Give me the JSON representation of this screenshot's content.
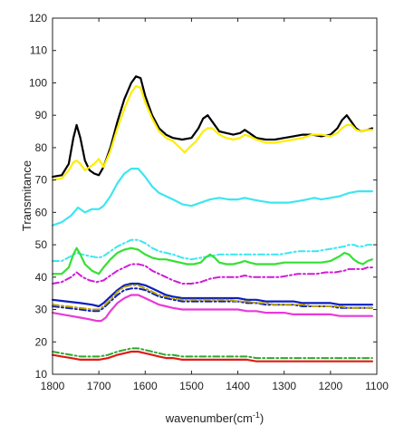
{
  "chart_data": {
    "type": "line",
    "xlabel": "wavenumber(cm",
    "xlabel_superscript": "-1",
    "xlabel_suffix": ")",
    "ylabel": "Transmitance",
    "xlim": [
      1800,
      1100
    ],
    "ylim": [
      10,
      120
    ],
    "x_reversed": true,
    "grid": false,
    "xticks": [
      "1800",
      "1700",
      "1600",
      "1500",
      "1400",
      "1300",
      "1200",
      "1100"
    ],
    "yticks": [
      "10",
      "20",
      "30",
      "40",
      "50",
      "60",
      "70",
      "80",
      "90",
      "100",
      "110",
      "120"
    ],
    "series": [
      {
        "color": "#000000",
        "dash": "solid",
        "width": 2.2,
        "x": [
          1800,
          1780,
          1765,
          1755,
          1748,
          1740,
          1730,
          1720,
          1710,
          1700,
          1690,
          1675,
          1660,
          1645,
          1630,
          1620,
          1610,
          1600,
          1585,
          1570,
          1555,
          1540,
          1520,
          1500,
          1485,
          1475,
          1465,
          1455,
          1440,
          1425,
          1410,
          1395,
          1385,
          1375,
          1360,
          1340,
          1320,
          1300,
          1280,
          1260,
          1240,
          1220,
          1200,
          1185,
          1175,
          1165,
          1155,
          1145,
          1135,
          1120,
          1110
        ],
        "y": [
          71,
          71.5,
          75,
          83,
          87,
          83,
          76,
          73,
          72,
          71.5,
          74,
          80,
          88,
          95,
          100,
          102,
          101.5,
          96,
          90,
          86,
          84,
          83,
          82.5,
          83,
          86,
          89,
          90,
          88,
          85,
          84.5,
          84,
          84.5,
          85.5,
          84.5,
          83,
          82.5,
          82.5,
          83,
          83.5,
          84,
          84,
          83.5,
          84,
          86,
          88.5,
          90,
          88,
          86,
          85,
          85.5,
          86
        ]
      },
      {
        "color": "#ffed00",
        "dash": "solid",
        "width": 2.2,
        "x": [
          1800,
          1780,
          1765,
          1755,
          1748,
          1740,
          1730,
          1720,
          1710,
          1700,
          1690,
          1675,
          1660,
          1645,
          1630,
          1620,
          1610,
          1600,
          1585,
          1570,
          1555,
          1540,
          1525,
          1515,
          1505,
          1490,
          1475,
          1465,
          1455,
          1440,
          1425,
          1410,
          1395,
          1385,
          1375,
          1360,
          1340,
          1320,
          1300,
          1280,
          1260,
          1240,
          1220,
          1200,
          1185,
          1175,
          1165,
          1155,
          1145,
          1135,
          1120,
          1110
        ],
        "y": [
          70,
          70.5,
          73,
          75.5,
          76,
          75,
          73,
          74,
          75,
          76.5,
          74,
          79,
          86,
          92,
          97,
          99,
          98.5,
          94,
          89,
          85,
          83,
          82,
          80,
          78.5,
          80,
          82,
          85,
          86,
          86,
          84,
          83,
          82.5,
          83,
          84,
          83.5,
          82.5,
          81.5,
          81.5,
          82,
          82.5,
          83,
          84,
          84,
          83.5,
          84.5,
          86,
          87,
          87,
          85.5,
          85,
          85.5,
          85.5
        ]
      },
      {
        "color": "#3de6f0",
        "dash": "solid",
        "width": 2.2,
        "x": [
          1800,
          1780,
          1760,
          1745,
          1730,
          1715,
          1700,
          1690,
          1675,
          1660,
          1645,
          1630,
          1615,
          1600,
          1585,
          1570,
          1555,
          1540,
          1520,
          1500,
          1480,
          1460,
          1440,
          1420,
          1400,
          1385,
          1370,
          1350,
          1330,
          1310,
          1290,
          1270,
          1250,
          1235,
          1220,
          1200,
          1180,
          1160,
          1140,
          1120,
          1110
        ],
        "y": [
          56,
          57,
          59,
          61.5,
          60,
          61,
          61,
          62,
          65,
          69,
          72,
          73.5,
          73.5,
          71,
          68,
          66,
          65,
          64,
          62.5,
          62,
          63,
          64,
          64.5,
          64,
          64,
          64.5,
          64,
          63.5,
          63,
          63,
          63,
          63.5,
          64,
          64.5,
          64,
          64.5,
          65,
          66,
          66.5,
          66.5,
          66.5
        ]
      },
      {
        "color": "#3de6f0",
        "dash": "dashdot",
        "width": 2,
        "x": [
          1800,
          1780,
          1760,
          1748,
          1735,
          1720,
          1700,
          1690,
          1675,
          1660,
          1645,
          1630,
          1615,
          1600,
          1585,
          1570,
          1555,
          1540,
          1520,
          1500,
          1480,
          1460,
          1440,
          1420,
          1400,
          1385,
          1370,
          1350,
          1330,
          1310,
          1290,
          1270,
          1250,
          1230,
          1210,
          1190,
          1170,
          1160,
          1150,
          1140,
          1130,
          1120,
          1110
        ],
        "y": [
          45,
          45,
          46.5,
          47.5,
          47,
          46.5,
          46,
          46.5,
          48,
          49.5,
          50.5,
          51.5,
          51.5,
          50.5,
          49,
          48,
          47.5,
          47,
          46,
          45.5,
          46,
          46.5,
          47,
          47,
          47,
          47,
          47,
          47,
          47,
          47,
          47.5,
          48,
          48,
          48,
          48.5,
          49,
          49.5,
          50,
          50,
          49.5,
          49.5,
          50,
          50
        ]
      },
      {
        "color": "#35e035",
        "dash": "solid",
        "width": 2.2,
        "x": [
          1800,
          1780,
          1765,
          1755,
          1748,
          1740,
          1730,
          1715,
          1700,
          1690,
          1675,
          1660,
          1645,
          1630,
          1615,
          1600,
          1585,
          1570,
          1555,
          1540,
          1525,
          1510,
          1495,
          1480,
          1470,
          1460,
          1450,
          1440,
          1425,
          1410,
          1395,
          1385,
          1375,
          1360,
          1340,
          1320,
          1300,
          1280,
          1260,
          1240,
          1220,
          1200,
          1180,
          1170,
          1160,
          1150,
          1140,
          1130,
          1120,
          1110
        ],
        "y": [
          41,
          41,
          43,
          47,
          49,
          47,
          44,
          42,
          41,
          43,
          45.5,
          47.5,
          48.5,
          49,
          48.5,
          47,
          46,
          45.5,
          45.5,
          45,
          44.5,
          44,
          44,
          44.5,
          46,
          47,
          46,
          44.5,
          44,
          44,
          44.5,
          45,
          44.5,
          44,
          44,
          44,
          44.5,
          44.5,
          44.5,
          44.5,
          44.5,
          45,
          46.5,
          47.5,
          47,
          45.5,
          44.5,
          44,
          45,
          45.5
        ]
      },
      {
        "color": "#d21ad8",
        "dash": "dashdot",
        "width": 2,
        "x": [
          1800,
          1780,
          1760,
          1748,
          1735,
          1720,
          1705,
          1690,
          1675,
          1660,
          1645,
          1630,
          1615,
          1600,
          1585,
          1570,
          1555,
          1540,
          1520,
          1500,
          1480,
          1460,
          1440,
          1420,
          1400,
          1385,
          1370,
          1350,
          1330,
          1310,
          1290,
          1270,
          1250,
          1230,
          1210,
          1190,
          1170,
          1160,
          1150,
          1140,
          1130,
          1120,
          1110
        ],
        "y": [
          38,
          38.5,
          40,
          41.5,
          40,
          39,
          38.5,
          39,
          40.5,
          42,
          43,
          44,
          44,
          43.5,
          42,
          41,
          40,
          39,
          38,
          38,
          38.5,
          39.5,
          40,
          40,
          40,
          40.5,
          40,
          40,
          40,
          40,
          40.5,
          41,
          41,
          41,
          41.5,
          41.5,
          42,
          42.5,
          42.5,
          42.5,
          42.5,
          43,
          43
        ]
      },
      {
        "color": "#0b1fbf",
        "dash": "solid",
        "width": 2.2,
        "x": [
          1800,
          1770,
          1740,
          1715,
          1700,
          1690,
          1675,
          1660,
          1645,
          1630,
          1615,
          1600,
          1585,
          1570,
          1555,
          1540,
          1520,
          1500,
          1480,
          1460,
          1440,
          1420,
          1400,
          1380,
          1360,
          1340,
          1320,
          1300,
          1280,
          1260,
          1240,
          1220,
          1200,
          1180,
          1160,
          1140,
          1120,
          1110
        ],
        "y": [
          33,
          32.5,
          32,
          31.5,
          31,
          32,
          34,
          36,
          37.5,
          38,
          38,
          37.5,
          36.5,
          35.5,
          34.5,
          34,
          33.5,
          33.5,
          33.5,
          33.5,
          33.5,
          33.5,
          33.5,
          33,
          33,
          32.5,
          32.5,
          32.5,
          32.5,
          32,
          32,
          32,
          32,
          31.5,
          31.5,
          31.5,
          31.5,
          31.5
        ]
      },
      {
        "color": "#0b1fbf",
        "dash": "dashdot",
        "width": 2,
        "x": [
          1800,
          1770,
          1740,
          1715,
          1700,
          1690,
          1675,
          1660,
          1645,
          1630,
          1615,
          1600,
          1585,
          1570,
          1555,
          1540,
          1520,
          1500,
          1480,
          1460,
          1440,
          1420,
          1400,
          1380,
          1360,
          1340,
          1320,
          1300,
          1280,
          1260,
          1240,
          1220,
          1200,
          1180,
          1160,
          1140,
          1120,
          1110
        ],
        "y": [
          31,
          30.5,
          30,
          29.5,
          29.5,
          30.5,
          32.5,
          34.5,
          36,
          36.5,
          36.5,
          36,
          35,
          34,
          33.5,
          33,
          32.5,
          32.5,
          32.5,
          32.5,
          32.5,
          32.5,
          32.5,
          32,
          32,
          31.5,
          31.5,
          31.5,
          31.5,
          31,
          31,
          31,
          31,
          30.5,
          30.5,
          30.5,
          30.5,
          30.5
        ]
      },
      {
        "color": "#b8a100",
        "dash": "dashdot",
        "width": 2,
        "x": [
          1800,
          1770,
          1740,
          1715,
          1700,
          1690,
          1675,
          1660,
          1645,
          1630,
          1615,
          1600,
          1585,
          1570,
          1555,
          1540,
          1520,
          1500,
          1480,
          1460,
          1440,
          1420,
          1400,
          1380,
          1360,
          1340,
          1320,
          1300,
          1280,
          1260,
          1240,
          1220,
          1200,
          1180,
          1160,
          1140,
          1120,
          1110
        ],
        "y": [
          31.5,
          31,
          30.5,
          30,
          30,
          31,
          33,
          35.5,
          37,
          37.5,
          37.5,
          36.5,
          35.5,
          34.5,
          34,
          33.5,
          33,
          33,
          33,
          33,
          33,
          33,
          32.5,
          32.5,
          32,
          32,
          31.5,
          31.5,
          31.5,
          31.5,
          31,
          31,
          31,
          31,
          30.5,
          30.5,
          30.5,
          30.5
        ]
      },
      {
        "color": "#e83ad8",
        "dash": "solid",
        "width": 2.2,
        "x": [
          1800,
          1780,
          1760,
          1740,
          1720,
          1705,
          1695,
          1685,
          1675,
          1660,
          1645,
          1630,
          1615,
          1600,
          1585,
          1570,
          1555,
          1540,
          1520,
          1500,
          1480,
          1460,
          1440,
          1420,
          1400,
          1380,
          1360,
          1340,
          1320,
          1300,
          1280,
          1260,
          1240,
          1220,
          1200,
          1180,
          1160,
          1140,
          1120,
          1110
        ],
        "y": [
          29,
          28.5,
          28,
          27.5,
          27,
          26.5,
          26.5,
          27.5,
          29.5,
          32,
          33.5,
          34.5,
          34.5,
          33.5,
          32.5,
          31.5,
          31,
          30.5,
          30,
          30,
          30,
          30,
          30,
          30,
          30,
          29.5,
          29.5,
          29,
          29,
          29,
          28.5,
          28.5,
          28.5,
          28.5,
          28.5,
          28,
          28,
          28,
          28,
          28
        ]
      },
      {
        "color": "#2ea82e",
        "dash": "dashdot",
        "width": 2,
        "x": [
          1800,
          1780,
          1760,
          1740,
          1720,
          1700,
          1680,
          1660,
          1645,
          1630,
          1615,
          1600,
          1585,
          1570,
          1555,
          1540,
          1520,
          1500,
          1480,
          1460,
          1440,
          1420,
          1400,
          1380,
          1360,
          1340,
          1320,
          1300,
          1280,
          1260,
          1240,
          1220,
          1200,
          1180,
          1160,
          1140,
          1120,
          1110
        ],
        "y": [
          17,
          16.5,
          16,
          15.5,
          15.5,
          15.5,
          16,
          17,
          17.5,
          18,
          18,
          17.5,
          17,
          16.5,
          16,
          16,
          15.5,
          15.5,
          15.5,
          15.5,
          15.5,
          15.5,
          15.5,
          15.5,
          15,
          15,
          15,
          15,
          15,
          15,
          15,
          15,
          15,
          15,
          15,
          15,
          15,
          15
        ]
      },
      {
        "color": "#e01b14",
        "dash": "solid",
        "width": 2.2,
        "x": [
          1800,
          1780,
          1760,
          1740,
          1720,
          1700,
          1680,
          1660,
          1645,
          1630,
          1615,
          1600,
          1585,
          1570,
          1555,
          1540,
          1520,
          1500,
          1480,
          1460,
          1440,
          1420,
          1400,
          1380,
          1360,
          1340,
          1320,
          1300,
          1280,
          1260,
          1240,
          1220,
          1200,
          1180,
          1160,
          1140,
          1120,
          1110
        ],
        "y": [
          16,
          15.5,
          15,
          14.5,
          14.5,
          14.5,
          15,
          16,
          16.5,
          17,
          17,
          16.5,
          16,
          15.5,
          15,
          15,
          14.5,
          14.5,
          14.5,
          14.5,
          14.5,
          14.5,
          14.5,
          14.5,
          14,
          14,
          14,
          14,
          14,
          14,
          14,
          14,
          14,
          14,
          14,
          14,
          14,
          14
        ]
      }
    ]
  }
}
